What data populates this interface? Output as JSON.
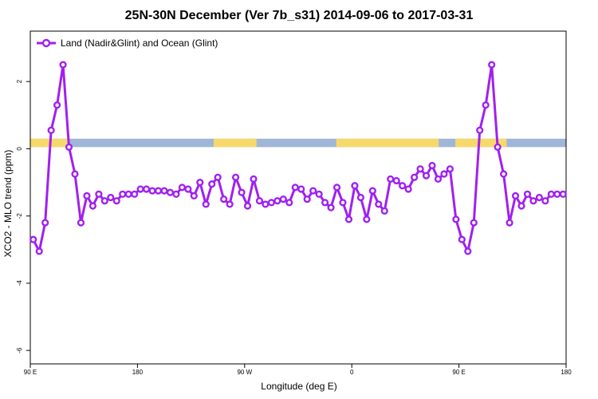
{
  "chart_data": {
    "type": "line",
    "title": "25N-30N December (Ver 7b_s31)   2014-09-06 to 2017-03-31",
    "xlabel": "Longitude (deg E)",
    "ylabel": "XCO2 - MLO trend (ppm)",
    "xlim": [
      90,
      540
    ],
    "ylim": [
      -6.4,
      3.5
    ],
    "x_ticks": [
      {
        "value": 90,
        "label": "90 E"
      },
      {
        "value": 180,
        "label": "180"
      },
      {
        "value": 270,
        "label": "90 W"
      },
      {
        "value": 360,
        "label": "0"
      },
      {
        "value": 450,
        "label": "90 E"
      },
      {
        "value": 540,
        "label": "180"
      }
    ],
    "y_ticks": [
      {
        "value": 2,
        "label": "2"
      },
      {
        "value": 0,
        "label": "0"
      },
      {
        "value": -2,
        "label": "-2"
      },
      {
        "value": -4,
        "label": "-4"
      },
      {
        "value": -6,
        "label": "-6"
      }
    ],
    "legend": {
      "position": "top-left",
      "label": "Land (Nadir&Glint) and Ocean (Glint)"
    },
    "colors": {
      "series": "#a020f0",
      "ocean": "#9fb6d8",
      "land": "#f7d96b"
    },
    "land_ocean_strip": {
      "y_range": [
        0.05,
        0.3
      ],
      "land_lon_ranges": [
        [
          90,
          122
        ],
        [
          244,
          280
        ],
        [
          347,
          433
        ],
        [
          447,
          490
        ]
      ]
    },
    "series": [
      {
        "name": "Land (Nadir&Glint) and Ocean (Glint)",
        "x": [
          92.5,
          97.5,
          102.5,
          107.5,
          112.5,
          117.5,
          122.5,
          127.5,
          132.5,
          137.5,
          142.5,
          147.5,
          152.5,
          157.5,
          162.5,
          167.5,
          172.5,
          177.5,
          182.5,
          187.5,
          192.5,
          197.5,
          202.5,
          207.5,
          212.5,
          217.5,
          222.5,
          227.5,
          232.5,
          237.5,
          242.5,
          247.5,
          252.5,
          257.5,
          262.5,
          267.5,
          272.5,
          277.5,
          282.5,
          287.5,
          292.5,
          297.5,
          302.5,
          307.5,
          312.5,
          317.5,
          322.5,
          327.5,
          332.5,
          337.5,
          342.5,
          347.5,
          352.5,
          357.5,
          362.5,
          367.5,
          372.5,
          377.5,
          382.5,
          387.5,
          392.5,
          397.5,
          402.5,
          407.5,
          412.5,
          417.5,
          422.5,
          427.5,
          432.5,
          437.5,
          442.5,
          447.5,
          452.5,
          457.5,
          462.5,
          467.5,
          472.5,
          477.5,
          482.5,
          487.5,
          492.5,
          497.5,
          502.5,
          507.5,
          512.5,
          517.5,
          522.5,
          527.5,
          532.5,
          537.5
        ],
        "y": [
          -2.7,
          -3.05,
          -2.2,
          0.55,
          1.3,
          2.5,
          0.05,
          -0.75,
          -2.2,
          -1.4,
          -1.7,
          -1.35,
          -1.55,
          -1.45,
          -1.55,
          -1.35,
          -1.35,
          -1.35,
          -1.2,
          -1.2,
          -1.25,
          -1.25,
          -1.25,
          -1.3,
          -1.35,
          -1.15,
          -1.2,
          -1.4,
          -1.0,
          -1.65,
          -1.05,
          -0.85,
          -1.5,
          -1.65,
          -0.85,
          -1.3,
          -1.7,
          -0.9,
          -1.55,
          -1.65,
          -1.6,
          -1.55,
          -1.5,
          -1.6,
          -1.15,
          -1.2,
          -1.5,
          -1.25,
          -1.35,
          -1.6,
          -1.75,
          -1.15,
          -1.6,
          -2.1,
          -1.1,
          -1.45,
          -2.1,
          -1.25,
          -1.65,
          -1.85,
          -0.9,
          -0.95,
          -1.1,
          -1.2,
          -0.85,
          -0.6,
          -0.8,
          -0.5,
          -0.9,
          -0.75,
          -0.6,
          -2.1,
          -2.7,
          -3.05,
          -2.2,
          0.55,
          1.3,
          2.5,
          0.05,
          -0.75,
          -2.2,
          -1.4,
          -1.7,
          -1.35,
          -1.55,
          -1.45,
          -1.55,
          -1.35,
          -1.35,
          -1.35
        ]
      }
    ]
  }
}
